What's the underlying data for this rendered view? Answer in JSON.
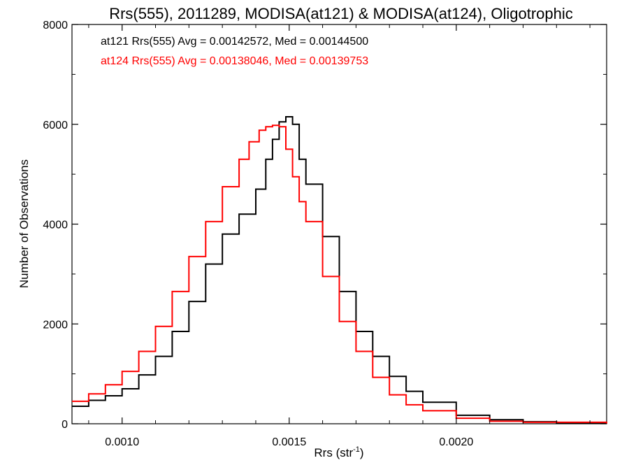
{
  "chart_data": {
    "type": "line",
    "title": "Rrs(555), 2011289, MODISA(at121) & MODISA(at124), Oligotrophic",
    "xlabel": "Rrs (str",
    "xlabel_sup": "-1",
    "xlabel_close": ")",
    "ylabel": "Number of Observations",
    "xlim": [
      0.00085,
      0.00245
    ],
    "ylim": [
      0,
      8000
    ],
    "xticks": [
      0.001,
      0.0015,
      0.002
    ],
    "xtick_labels": [
      "0.0010",
      "0.0015",
      "0.0020"
    ],
    "yticks": [
      0,
      2000,
      4000,
      6000,
      8000
    ],
    "ytick_labels": [
      "0",
      "2000",
      "4000",
      "6000",
      "8000"
    ],
    "grid": false,
    "legend_placement": "top-left",
    "series": [
      {
        "name": "at121 Rrs(555) Avg = 0.00142572, Med = 0.00144500",
        "color": "#000000",
        "x": [
          0.00085,
          0.0009,
          0.00095,
          0.001,
          0.00105,
          0.0011,
          0.00115,
          0.0012,
          0.00125,
          0.0013,
          0.00135,
          0.0014,
          0.00143,
          0.00145,
          0.00147,
          0.00149,
          0.00151,
          0.00153,
          0.00155,
          0.0016,
          0.00165,
          0.0017,
          0.00175,
          0.0018,
          0.00185,
          0.0019,
          0.002,
          0.0021,
          0.0022,
          0.0023,
          0.00245
        ],
        "y": [
          350,
          470,
          560,
          700,
          980,
          1350,
          1850,
          2450,
          3200,
          3800,
          4200,
          4700,
          5300,
          5700,
          6050,
          6150,
          6000,
          5300,
          4800,
          3750,
          2650,
          1850,
          1350,
          950,
          650,
          430,
          170,
          80,
          40,
          20,
          5
        ]
      },
      {
        "name": "at124 Rrs(555) Avg = 0.00138046, Med = 0.00139753",
        "color": "#ff0000",
        "x": [
          0.00085,
          0.0009,
          0.00095,
          0.001,
          0.00105,
          0.0011,
          0.00115,
          0.0012,
          0.00125,
          0.0013,
          0.00135,
          0.00138,
          0.00141,
          0.00143,
          0.00145,
          0.00147,
          0.00149,
          0.00151,
          0.00153,
          0.00155,
          0.0016,
          0.00165,
          0.0017,
          0.00175,
          0.0018,
          0.00185,
          0.0019,
          0.002,
          0.0021,
          0.0022,
          0.00245
        ],
        "y": [
          450,
          600,
          780,
          1050,
          1450,
          1950,
          2650,
          3350,
          4050,
          4750,
          5300,
          5650,
          5880,
          5950,
          5980,
          5950,
          5500,
          4950,
          4450,
          4050,
          2950,
          2050,
          1450,
          930,
          580,
          380,
          260,
          110,
          50,
          30,
          5
        ]
      }
    ]
  }
}
